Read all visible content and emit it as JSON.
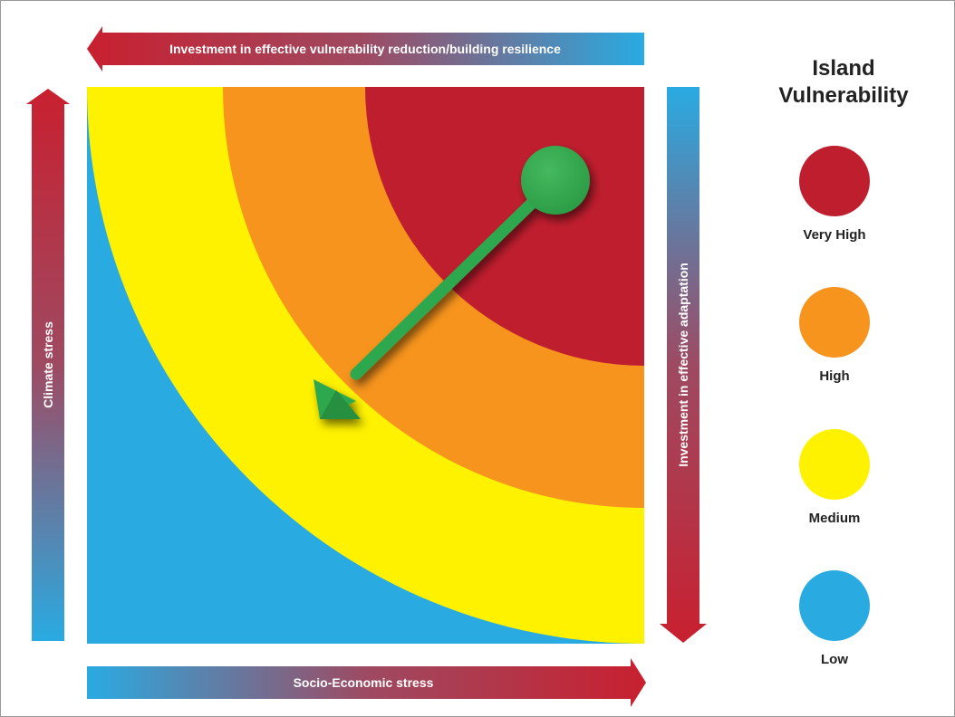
{
  "diagram": {
    "top_arrow_label": "Investment in effective vulnerability reduction/building resilience",
    "left_arrow_label": "Climate stress",
    "right_arrow_label": "Investment in effective adaptation",
    "bottom_arrow_label": "Socio-Economic stress"
  },
  "legend": {
    "title": "Island Vulnerability",
    "items": [
      {
        "label": "Very High",
        "color": "#bf1e2e"
      },
      {
        "label": "High",
        "color": "#f7941d"
      },
      {
        "label": "Medium",
        "color": "#fff200"
      },
      {
        "label": "Low",
        "color": "#29abe2"
      }
    ]
  },
  "colors": {
    "very_high": "#bf1e2e",
    "high": "#f7941d",
    "medium": "#fff200",
    "low": "#29abe2",
    "arrow_green": "#2fa84f",
    "gradient_red": "#c8202f",
    "gradient_blue": "#29abe2"
  }
}
